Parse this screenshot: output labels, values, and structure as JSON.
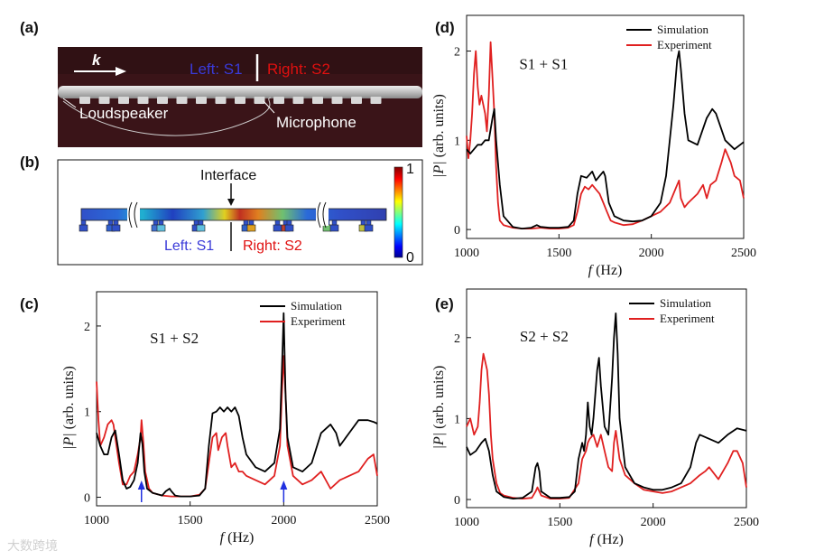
{
  "panel_a": {
    "label": "(a)",
    "wave_symbol": "k",
    "left_label": "Left: S1",
    "right_label": "Right: S2",
    "loudspeaker": "Loudspeaker",
    "microphone": "Microphone",
    "colors": {
      "left": "#3a3ad8",
      "right": "#e01010",
      "background": "#3a1418"
    }
  },
  "panel_b": {
    "label": "(b)",
    "interface": "Interface",
    "left_label": "Left: S1",
    "right_label": "Right: S2",
    "colorbar_max": "1",
    "colorbar_min": "0"
  },
  "watermark": "大数跨境",
  "chart_data": [
    {
      "panel": "(c)",
      "type": "line",
      "annotation": "S1 + S2",
      "xlabel": "f (Hz)",
      "ylabel": "|P| (arb. units)",
      "xlim": [
        1000,
        2500
      ],
      "ylim": [
        -0.1,
        2.4
      ],
      "xticks": [
        1000,
        1500,
        2000,
        2500
      ],
      "yticks": [
        0,
        1,
        2
      ],
      "arrows_at": [
        1240,
        2000
      ],
      "arrow_color": "#2030e0",
      "series": [
        {
          "name": "Simulation",
          "color": "#000000",
          "x": [
            1000,
            1020,
            1040,
            1060,
            1080,
            1100,
            1120,
            1140,
            1160,
            1180,
            1200,
            1220,
            1235,
            1245,
            1255,
            1270,
            1300,
            1350,
            1370,
            1390,
            1400,
            1420,
            1450,
            1500,
            1550,
            1580,
            1600,
            1620,
            1640,
            1660,
            1680,
            1700,
            1720,
            1740,
            1760,
            1780,
            1800,
            1850,
            1900,
            1950,
            1980,
            1995,
            2000,
            2010,
            2020,
            2050,
            2100,
            2150,
            2200,
            2250,
            2280,
            2300,
            2350,
            2400,
            2450,
            2480,
            2500
          ],
          "values": [
            0.75,
            0.6,
            0.5,
            0.5,
            0.7,
            0.78,
            0.5,
            0.2,
            0.1,
            0.12,
            0.2,
            0.4,
            0.75,
            0.62,
            0.3,
            0.1,
            0.05,
            0.02,
            0.07,
            0.1,
            0.07,
            0.02,
            0.01,
            0.01,
            0.02,
            0.1,
            0.6,
            0.98,
            1.0,
            1.05,
            1.0,
            1.05,
            1.0,
            1.05,
            0.95,
            0.7,
            0.5,
            0.35,
            0.3,
            0.4,
            0.8,
            1.8,
            2.15,
            1.2,
            0.7,
            0.35,
            0.3,
            0.4,
            0.75,
            0.85,
            0.75,
            0.6,
            0.75,
            0.9,
            0.9,
            0.88,
            0.86
          ]
        },
        {
          "name": "Experiment",
          "color": "#e02020",
          "x": [
            1000,
            1010,
            1020,
            1040,
            1060,
            1080,
            1090,
            1100,
            1120,
            1140,
            1160,
            1180,
            1200,
            1220,
            1235,
            1240,
            1250,
            1260,
            1280,
            1300,
            1350,
            1400,
            1450,
            1500,
            1550,
            1580,
            1600,
            1620,
            1640,
            1650,
            1670,
            1690,
            1700,
            1720,
            1740,
            1760,
            1780,
            1800,
            1850,
            1900,
            1950,
            1980,
            1990,
            2000,
            2010,
            2020,
            2050,
            2100,
            2150,
            2200,
            2250,
            2300,
            2350,
            2400,
            2450,
            2480,
            2500
          ],
          "values": [
            1.35,
            0.9,
            0.6,
            0.7,
            0.85,
            0.9,
            0.85,
            0.7,
            0.4,
            0.15,
            0.15,
            0.25,
            0.3,
            0.5,
            0.7,
            0.9,
            0.65,
            0.3,
            0.1,
            0.05,
            0.02,
            0.01,
            0.01,
            0.01,
            0.03,
            0.1,
            0.4,
            0.7,
            0.75,
            0.55,
            0.7,
            0.75,
            0.6,
            0.35,
            0.4,
            0.3,
            0.3,
            0.25,
            0.2,
            0.15,
            0.25,
            0.6,
            1.2,
            1.65,
            1.2,
            0.6,
            0.25,
            0.15,
            0.2,
            0.3,
            0.1,
            0.2,
            0.25,
            0.3,
            0.45,
            0.5,
            0.25
          ]
        }
      ]
    },
    {
      "panel": "(d)",
      "type": "line",
      "annotation": "S1 + S1",
      "xlabel": "f (Hz)",
      "ylabel": "|P| (arb. units)",
      "xlim": [
        1000,
        2500
      ],
      "ylim": [
        -0.1,
        2.4
      ],
      "xticks": [
        1000,
        1500,
        2000,
        2500
      ],
      "yticks": [
        0,
        1,
        2
      ],
      "series": [
        {
          "name": "Simulation",
          "color": "#000000",
          "x": [
            1000,
            1020,
            1040,
            1060,
            1080,
            1100,
            1120,
            1140,
            1150,
            1160,
            1180,
            1200,
            1250,
            1300,
            1350,
            1380,
            1400,
            1450,
            1500,
            1550,
            1580,
            1600,
            1620,
            1650,
            1680,
            1700,
            1720,
            1740,
            1750,
            1770,
            1800,
            1850,
            1900,
            1950,
            2000,
            2050,
            2080,
            2100,
            2120,
            2140,
            2150,
            2160,
            2180,
            2200,
            2250,
            2300,
            2330,
            2350,
            2400,
            2450,
            2500
          ],
          "values": [
            0.9,
            0.85,
            0.9,
            0.95,
            0.95,
            1.0,
            1.0,
            1.25,
            1.35,
            1.0,
            0.5,
            0.15,
            0.03,
            0.01,
            0.02,
            0.05,
            0.03,
            0.02,
            0.02,
            0.03,
            0.1,
            0.4,
            0.6,
            0.58,
            0.65,
            0.55,
            0.6,
            0.65,
            0.6,
            0.3,
            0.15,
            0.1,
            0.09,
            0.1,
            0.15,
            0.3,
            0.6,
            1.0,
            1.4,
            1.9,
            2.0,
            1.8,
            1.3,
            1.0,
            0.95,
            1.25,
            1.35,
            1.3,
            1.0,
            0.9,
            0.98
          ]
        },
        {
          "name": "Experiment",
          "color": "#e02020",
          "x": [
            1000,
            1010,
            1020,
            1030,
            1040,
            1050,
            1060,
            1070,
            1080,
            1100,
            1110,
            1120,
            1130,
            1140,
            1150,
            1160,
            1170,
            1180,
            1200,
            1250,
            1300,
            1350,
            1400,
            1450,
            1500,
            1550,
            1580,
            1600,
            1620,
            1640,
            1660,
            1680,
            1700,
            1720,
            1740,
            1760,
            1780,
            1800,
            1850,
            1900,
            1950,
            2000,
            2050,
            2100,
            2120,
            2140,
            2150,
            2160,
            2180,
            2200,
            2250,
            2280,
            2300,
            2320,
            2350,
            2380,
            2400,
            2430,
            2450,
            2480,
            2500
          ],
          "values": [
            1.05,
            0.8,
            1.0,
            1.3,
            1.75,
            2.0,
            1.6,
            1.4,
            1.5,
            1.3,
            1.1,
            1.5,
            2.1,
            1.7,
            1.3,
            0.7,
            0.3,
            0.1,
            0.05,
            0.02,
            0.01,
            0.01,
            0.02,
            0.01,
            0.01,
            0.02,
            0.05,
            0.2,
            0.4,
            0.48,
            0.45,
            0.5,
            0.45,
            0.4,
            0.3,
            0.2,
            0.1,
            0.08,
            0.05,
            0.06,
            0.1,
            0.15,
            0.2,
            0.3,
            0.4,
            0.5,
            0.55,
            0.35,
            0.25,
            0.3,
            0.4,
            0.5,
            0.35,
            0.5,
            0.55,
            0.75,
            0.9,
            0.75,
            0.6,
            0.55,
            0.35
          ]
        }
      ]
    },
    {
      "panel": "(e)",
      "type": "line",
      "annotation": "S2 + S2",
      "xlabel": "f (Hz)",
      "ylabel": "|P| (arb. units)",
      "xlim": [
        1000,
        2500
      ],
      "ylim": [
        -0.1,
        2.6
      ],
      "xticks": [
        1000,
        1500,
        2000,
        2500
      ],
      "yticks": [
        0,
        1,
        2
      ],
      "series": [
        {
          "name": "Simulation",
          "color": "#000000",
          "x": [
            1000,
            1020,
            1050,
            1080,
            1100,
            1120,
            1140,
            1160,
            1200,
            1250,
            1300,
            1350,
            1370,
            1380,
            1390,
            1400,
            1450,
            1500,
            1550,
            1580,
            1600,
            1620,
            1630,
            1640,
            1650,
            1660,
            1670,
            1680,
            1690,
            1700,
            1710,
            1720,
            1740,
            1760,
            1780,
            1790,
            1800,
            1810,
            1820,
            1850,
            1900,
            1950,
            2000,
            2050,
            2100,
            2150,
            2200,
            2230,
            2250,
            2300,
            2350,
            2400,
            2450,
            2500
          ],
          "values": [
            0.65,
            0.55,
            0.6,
            0.7,
            0.75,
            0.6,
            0.3,
            0.1,
            0.03,
            0.01,
            0.02,
            0.1,
            0.4,
            0.45,
            0.35,
            0.1,
            0.02,
            0.02,
            0.03,
            0.1,
            0.5,
            0.7,
            0.6,
            0.8,
            1.2,
            0.9,
            0.8,
            1.0,
            1.3,
            1.6,
            1.75,
            1.4,
            0.9,
            0.8,
            1.5,
            2.0,
            2.3,
            1.8,
            1.0,
            0.4,
            0.2,
            0.15,
            0.12,
            0.12,
            0.15,
            0.2,
            0.4,
            0.7,
            0.8,
            0.75,
            0.7,
            0.8,
            0.88,
            0.85
          ]
        },
        {
          "name": "Experiment",
          "color": "#e02020",
          "x": [
            1000,
            1020,
            1040,
            1060,
            1070,
            1080,
            1090,
            1100,
            1110,
            1120,
            1130,
            1140,
            1160,
            1180,
            1200,
            1250,
            1300,
            1350,
            1370,
            1380,
            1400,
            1450,
            1500,
            1550,
            1600,
            1620,
            1640,
            1650,
            1660,
            1680,
            1700,
            1720,
            1740,
            1760,
            1780,
            1790,
            1800,
            1820,
            1850,
            1900,
            1950,
            2000,
            2050,
            2100,
            2150,
            2200,
            2250,
            2280,
            2300,
            2350,
            2400,
            2430,
            2450,
            2480,
            2500
          ],
          "values": [
            0.9,
            1.0,
            0.8,
            0.9,
            1.2,
            1.6,
            1.8,
            1.7,
            1.6,
            1.3,
            0.8,
            0.5,
            0.2,
            0.08,
            0.05,
            0.02,
            0.01,
            0.02,
            0.1,
            0.15,
            0.05,
            0.01,
            0.01,
            0.02,
            0.2,
            0.5,
            0.6,
            0.7,
            0.75,
            0.8,
            0.65,
            0.8,
            0.6,
            0.4,
            0.35,
            0.7,
            0.85,
            0.5,
            0.3,
            0.2,
            0.12,
            0.1,
            0.08,
            0.1,
            0.15,
            0.2,
            0.3,
            0.35,
            0.4,
            0.25,
            0.45,
            0.6,
            0.6,
            0.45,
            0.15
          ]
        }
      ]
    }
  ]
}
